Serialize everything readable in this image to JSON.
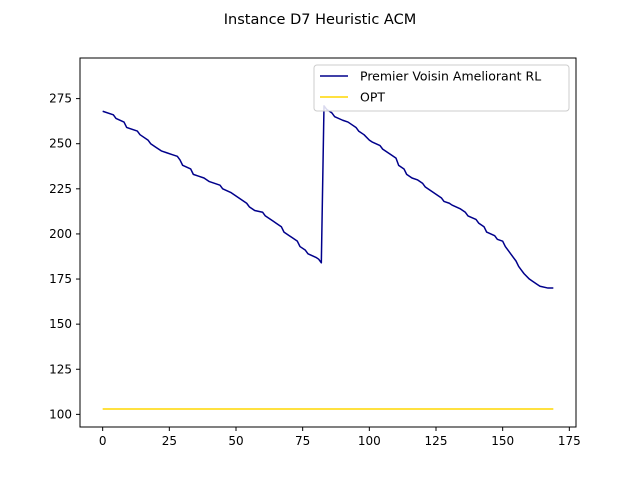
{
  "chart_data": {
    "type": "line",
    "title": "Instance D7 Heuristic ACM",
    "xlabel": "",
    "ylabel": "",
    "xlim": [
      -8.5,
      177.5
    ],
    "ylim": [
      93,
      297.5
    ],
    "xticks": [
      0,
      25,
      50,
      75,
      100,
      125,
      150,
      175
    ],
    "yticks": [
      100,
      125,
      150,
      175,
      200,
      225,
      250,
      275
    ],
    "grid": false,
    "legend_position": "top-right",
    "series": [
      {
        "name": "Premier Voisin Ameliorant RL",
        "color": "#00008b",
        "x": [
          0,
          4,
          5,
          8,
          9,
          13,
          14,
          17,
          18,
          20,
          22,
          24,
          26,
          28,
          29,
          30,
          33,
          34,
          36,
          38,
          40,
          44,
          45,
          48,
          50,
          52,
          54,
          55,
          57,
          60,
          61,
          64,
          65,
          67,
          68,
          70,
          71,
          73,
          74,
          76,
          77,
          80,
          81,
          82,
          83,
          84,
          86,
          87,
          90,
          92,
          95,
          96,
          98,
          100,
          101,
          104,
          105,
          108,
          110,
          111,
          113,
          114,
          116,
          118,
          120,
          121,
          123,
          125,
          127,
          128,
          130,
          131,
          134,
          136,
          137,
          140,
          141,
          143,
          144,
          147,
          148,
          150,
          151,
          153,
          154,
          155,
          156,
          157,
          158,
          160,
          161,
          163,
          164,
          167,
          168,
          169
        ],
        "y": [
          268,
          266,
          264,
          262,
          259,
          257,
          255,
          252,
          250,
          248,
          246,
          245,
          244,
          243,
          241,
          238,
          236,
          233,
          232,
          231,
          229,
          227,
          225,
          223,
          221,
          219,
          217,
          215,
          213,
          212,
          210,
          207,
          206,
          204,
          201,
          199,
          198,
          196,
          193,
          191,
          189,
          187,
          186,
          184,
          271,
          269,
          267,
          265,
          263,
          262,
          259,
          257,
          255,
          252,
          251,
          249,
          247,
          244,
          242,
          238,
          236,
          233,
          231,
          230,
          228,
          226,
          224,
          222,
          220,
          218,
          217,
          216,
          214,
          212,
          210,
          208,
          206,
          204,
          201,
          199,
          197,
          196,
          193,
          189,
          187,
          185,
          182,
          180,
          178,
          175,
          174,
          172,
          171,
          170,
          170,
          170
        ]
      },
      {
        "name": "OPT",
        "color": "#ffd700",
        "x": [
          0,
          169
        ],
        "y": [
          103,
          103
        ]
      }
    ]
  }
}
